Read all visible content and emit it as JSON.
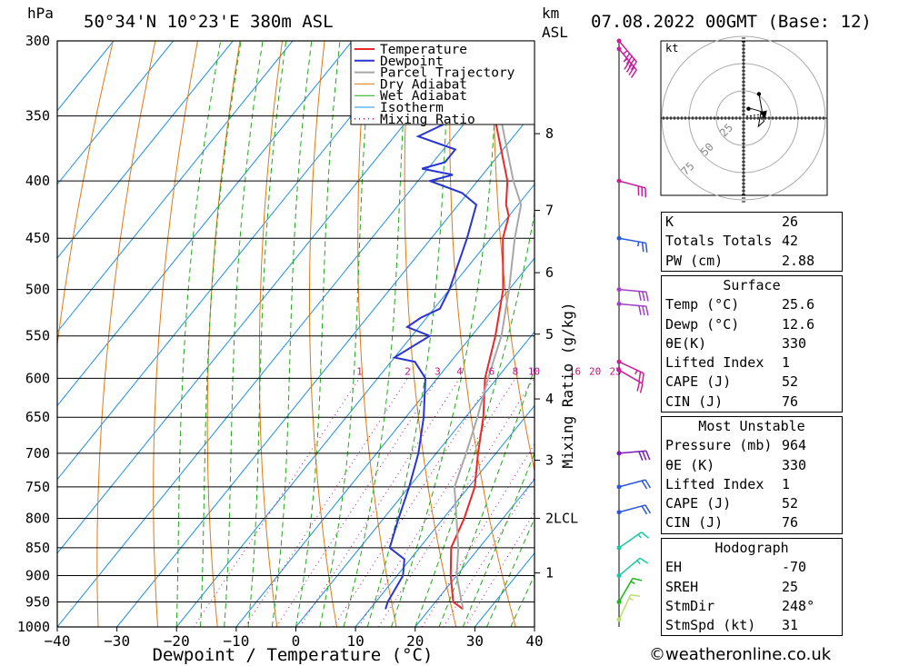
{
  "header": {
    "location": "50°34'N  10°23'E  380m  ASL",
    "datetime": "07.08.2022  00GMT  (Base: 12)",
    "p_unit": "hPa",
    "km_unit": "km",
    "asl_unit": "ASL"
  },
  "chart_data": {
    "type": "skew-t",
    "xlabel": "Dewpoint / Temperature (°C)",
    "right_label": "Mixing Ratio (g/kg)",
    "x_ticks": [
      -40,
      -30,
      -20,
      -10,
      0,
      10,
      20,
      30,
      40
    ],
    "p_levels": [
      300,
      350,
      400,
      450,
      500,
      550,
      600,
      650,
      700,
      750,
      800,
      850,
      900,
      950,
      1000
    ],
    "xlim": [
      -40,
      40
    ],
    "plim": [
      1000,
      300
    ],
    "km_ticks": [
      {
        "label": "8",
        "p": 363
      },
      {
        "label": "7",
        "p": 425
      },
      {
        "label": "6",
        "p": 483
      },
      {
        "label": "5",
        "p": 548
      },
      {
        "label": "4",
        "p": 626
      },
      {
        "label": "3",
        "p": 710
      },
      {
        "label": "2LCL",
        "p": 800
      },
      {
        "label": "1",
        "p": 895
      }
    ],
    "mixing_ratio_labels": [
      "1",
      "2",
      "3",
      "4",
      "6",
      "8",
      "10",
      "16",
      "20",
      "25"
    ],
    "mixing_ratio_values": [
      1,
      2,
      3,
      4,
      6,
      8,
      10,
      16,
      20,
      25
    ],
    "legend": [
      "Temperature",
      "Dewpoint",
      "Parcel Trajectory",
      "Dry Adiabat",
      "Wet Adiabat",
      "Isotherm",
      "Mixing Ratio"
    ],
    "colors": {
      "temperature": "#e8282a",
      "dewpoint": "#2a35d2",
      "parcel": "#a8a8a8",
      "dry_adiabat": "#e07a14",
      "wet_adiabat": "#20a818",
      "isotherm": "#1e8fe0",
      "mixing_ratio": "#c01080"
    },
    "series": [
      {
        "name": "Temperature",
        "points": [
          [
            964,
            25.6
          ],
          [
            950,
            23
          ],
          [
            900,
            19
          ],
          [
            850,
            15.3
          ],
          [
            800,
            13.5
          ],
          [
            750,
            11
          ],
          [
            700,
            7
          ],
          [
            650,
            3
          ],
          [
            600,
            -2
          ],
          [
            550,
            -6
          ],
          [
            500,
            -11
          ],
          [
            450,
            -18
          ],
          [
            430,
            -20
          ],
          [
            420,
            -22
          ],
          [
            400,
            -25
          ],
          [
            350,
            -36
          ],
          [
            300,
            -45
          ]
        ]
      },
      {
        "name": "Dewpoint",
        "points": [
          [
            964,
            12.6
          ],
          [
            950,
            12
          ],
          [
            900,
            11
          ],
          [
            870,
            9
          ],
          [
            850,
            5
          ],
          [
            800,
            2.5
          ],
          [
            750,
            0
          ],
          [
            700,
            -3
          ],
          [
            650,
            -7
          ],
          [
            600,
            -12
          ],
          [
            580,
            -16
          ],
          [
            575,
            -20
          ],
          [
            550,
            -17
          ],
          [
            540,
            -22
          ],
          [
            530,
            -21
          ],
          [
            520,
            -19
          ],
          [
            500,
            -20
          ],
          [
            450,
            -24
          ],
          [
            420,
            -27
          ],
          [
            410,
            -31
          ],
          [
            400,
            -38
          ],
          [
            395,
            -35
          ],
          [
            390,
            -41
          ],
          [
            385,
            -38
          ],
          [
            375,
            -38
          ],
          [
            365,
            -46
          ],
          [
            345,
            -40
          ],
          [
            330,
            -48
          ],
          [
            300,
            -53
          ]
        ]
      },
      {
        "name": "Parcel Trajectory",
        "points": [
          [
            964,
            25.6
          ],
          [
            900,
            20
          ],
          [
            850,
            16.5
          ],
          [
            800,
            12.2
          ],
          [
            750,
            7.6
          ],
          [
            700,
            5
          ],
          [
            650,
            2
          ],
          [
            600,
            -1.5
          ],
          [
            550,
            -5
          ],
          [
            500,
            -10
          ],
          [
            450,
            -16
          ],
          [
            420,
            -19.5
          ],
          [
            400,
            -24
          ],
          [
            350,
            -35
          ],
          [
            300,
            -47
          ]
        ]
      }
    ]
  },
  "wind_barbs": [
    {
      "p": 300,
      "dir": 320,
      "kt": 45
    },
    {
      "p": 305,
      "dir": 320,
      "kt": 45
    },
    {
      "p": 400,
      "dir": 285,
      "kt": 30
    },
    {
      "p": 450,
      "dir": 280,
      "kt": 25
    },
    {
      "p": 500,
      "dir": 275,
      "kt": 30
    },
    {
      "p": 515,
      "dir": 275,
      "kt": 30
    },
    {
      "p": 580,
      "dir": 295,
      "kt": 25
    },
    {
      "p": 590,
      "dir": 300,
      "kt": 20
    },
    {
      "p": 700,
      "dir": 265,
      "kt": 30
    },
    {
      "p": 750,
      "dir": 255,
      "kt": 20
    },
    {
      "p": 790,
      "dir": 255,
      "kt": 20
    },
    {
      "p": 850,
      "dir": 235,
      "kt": 15
    },
    {
      "p": 900,
      "dir": 230,
      "kt": 15
    },
    {
      "p": 950,
      "dir": 210,
      "kt": 15
    },
    {
      "p": 985,
      "dir": 205,
      "kt": 15
    }
  ],
  "hodograph": {
    "unit": "kt",
    "ring_labels": [
      "25",
      "50",
      "75"
    ],
    "points": [
      [
        0.9,
        1.7
      ],
      [
        1.5,
        1.7
      ],
      [
        3.2,
        1.2
      ],
      [
        2.7,
        -1.5
      ],
      [
        3.7,
        -0.6
      ],
      [
        2.8,
        4.4
      ]
    ],
    "storm_motion": [
      3.6,
      0.9
    ]
  },
  "indices": [
    {
      "label": "K",
      "value": "26"
    },
    {
      "label": "Totals Totals",
      "value": "42"
    },
    {
      "label": "PW (cm)",
      "value": "2.88"
    }
  ],
  "surface": {
    "title": "Surface",
    "rows": [
      {
        "label": "Temp (°C)",
        "value": "25.6"
      },
      {
        "label": "Dewp (°C)",
        "value": "12.6"
      },
      {
        "label": "θE(K)",
        "value": "330"
      },
      {
        "label": "Lifted Index",
        "value": "1"
      },
      {
        "label": "CAPE (J)",
        "value": "52"
      },
      {
        "label": "CIN (J)",
        "value": "76"
      }
    ]
  },
  "most_unstable": {
    "title": "Most Unstable",
    "rows": [
      {
        "label": "Pressure (mb)",
        "value": "964"
      },
      {
        "label": "θE (K)",
        "value": "330"
      },
      {
        "label": "Lifted Index",
        "value": "1"
      },
      {
        "label": "CAPE (J)",
        "value": "52"
      },
      {
        "label": "CIN (J)",
        "value": "76"
      }
    ]
  },
  "hodo_table": {
    "title": "Hodograph",
    "rows": [
      {
        "label": "EH",
        "value": "-70"
      },
      {
        "label": "SREH",
        "value": "25"
      },
      {
        "label": "StmDir",
        "value": "248°"
      },
      {
        "label": "StmSpd (kt)",
        "value": "31"
      }
    ]
  },
  "credit": "©weatheronline.co.uk"
}
